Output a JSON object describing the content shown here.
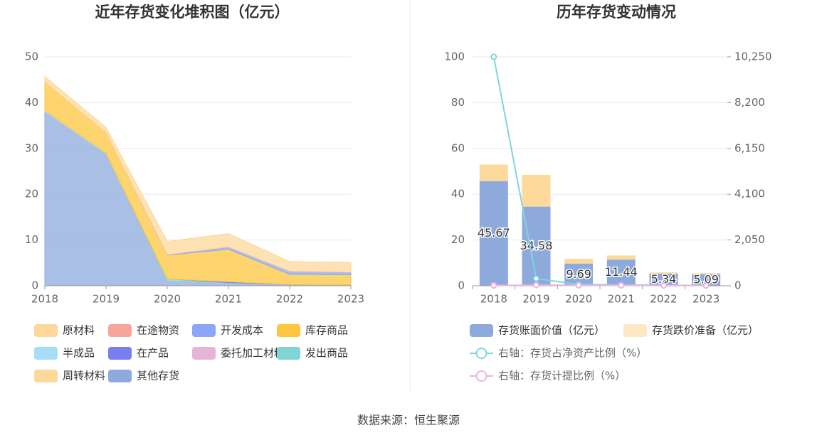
{
  "chart_data": [
    {
      "type": "area",
      "stacked": true,
      "title": "近年存货变化堆积图（亿元）",
      "categories": [
        "2018",
        "2019",
        "2020",
        "2021",
        "2022",
        "2023"
      ],
      "series": [
        {
          "name": "原材料",
          "color": "#fdd89a",
          "values": [
            1.2,
            1.1,
            2.9,
            2.9,
            2.1,
            2.1
          ]
        },
        {
          "name": "在途物资",
          "color": "#f6a59a",
          "values": [
            0,
            0,
            0,
            0,
            0,
            0
          ]
        },
        {
          "name": "开发成本",
          "color": "#8ba6f7",
          "values": [
            0,
            0,
            0.1,
            0.5,
            0.7,
            0.6
          ]
        },
        {
          "name": "库存商品",
          "color": "#fdc63e",
          "values": [
            6.2,
            4.5,
            5.2,
            7.1,
            2.2,
            2.2
          ]
        },
        {
          "name": "半成品",
          "color": "#a7ddf7",
          "values": [
            0.3,
            0.2,
            0,
            0,
            0,
            0
          ]
        },
        {
          "name": "在产品",
          "color": "#7a7ef0",
          "values": [
            0,
            0,
            0,
            0.2,
            0,
            0
          ]
        },
        {
          "name": "委托加工材料",
          "color": "#e8b3d9",
          "values": [
            0,
            0,
            0,
            0,
            0,
            0
          ]
        },
        {
          "name": "发出商品",
          "color": "#80d4d6",
          "values": [
            0,
            0,
            0.5,
            0,
            0,
            0
          ]
        },
        {
          "name": "周转材料",
          "color": "#fdd89a",
          "values": [
            0,
            0,
            0,
            0,
            0,
            0
          ]
        },
        {
          "name": "其他存货",
          "color": "#8eaadc",
          "values": [
            38,
            28.8,
            1.0,
            0.7,
            0.3,
            0.2
          ]
        }
      ],
      "ylim": [
        0,
        50
      ],
      "yticks": [
        0,
        10,
        20,
        30,
        40,
        50
      ],
      "grid": true
    },
    {
      "type": "bar",
      "stacked": true,
      "title": "历年存货变动情况",
      "categories": [
        "2018",
        "2019",
        "2020",
        "2021",
        "2022",
        "2023"
      ],
      "series": [
        {
          "name": "存货账面价值（亿元）",
          "type": "bar",
          "color": "#8eaadc",
          "values": [
            45.67,
            34.58,
            9.69,
            11.44,
            5.34,
            5.09
          ]
        },
        {
          "name": "存货跌价准备（亿元）",
          "type": "bar",
          "color": "#fdd99b",
          "values": [
            7.3,
            13.9,
            2.1,
            1.8,
            0.5,
            0.4
          ]
        },
        {
          "name": "右轴：存货占净资产比例（%）",
          "type": "line",
          "axis": "y2",
          "color": "#7fd6db",
          "values": [
            10250,
            320,
            60,
            40,
            20,
            15
          ]
        },
        {
          "name": "右轴：存货计提比例（%）",
          "type": "line",
          "axis": "y2",
          "color": "#e9b4de",
          "values": [
            14,
            29,
            18,
            14,
            9,
            8
          ]
        }
      ],
      "ylim": [
        0,
        100
      ],
      "yticks": [
        0,
        20,
        40,
        60,
        80,
        100
      ],
      "y2lim": [
        0,
        10250
      ],
      "y2ticks": [
        0,
        {
          "value": 2050,
          "label": "2,050"
        },
        {
          "value": 4100,
          "label": "4,100"
        },
        {
          "value": 6150,
          "label": "6,150"
        },
        {
          "value": 8200,
          "label": "8,200"
        },
        {
          "value": 10250,
          "label": "10,250"
        }
      ],
      "grid": true
    }
  ],
  "source": "数据来源：恒生聚源"
}
